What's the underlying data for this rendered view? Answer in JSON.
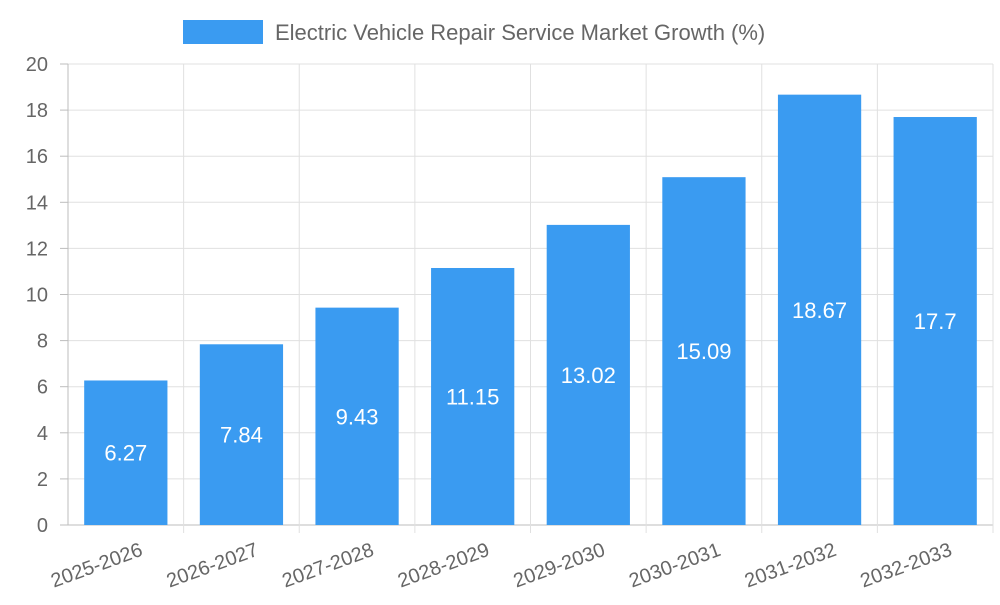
{
  "chart_data": {
    "type": "bar",
    "legend": {
      "position": "top",
      "entries": [
        {
          "label": "Electric Vehicle Repair Service Market Growth (%)",
          "color": "#3a9bf1"
        }
      ]
    },
    "categories": [
      "2025-2026",
      "2026-2027",
      "2027-2028",
      "2028-2029",
      "2029-2030",
      "2030-2031",
      "2031-2032",
      "2032-2033"
    ],
    "series": [
      {
        "name": "Electric Vehicle Repair Service Market Growth (%)",
        "color": "#3a9bf1",
        "values": [
          6.27,
          7.84,
          9.43,
          11.15,
          13.02,
          15.09,
          18.67,
          17.7
        ]
      }
    ],
    "data_labels": [
      "6.27",
      "7.84",
      "9.43",
      "11.15",
      "13.02",
      "15.09",
      "18.67",
      "17.7"
    ],
    "y_ticks": [
      "0",
      "2",
      "4",
      "6",
      "8",
      "10",
      "12",
      "14",
      "16",
      "18",
      "20"
    ],
    "ylim": [
      0,
      20
    ],
    "y_step": 2,
    "grid": true,
    "x_tick_rotation_deg": -20
  }
}
